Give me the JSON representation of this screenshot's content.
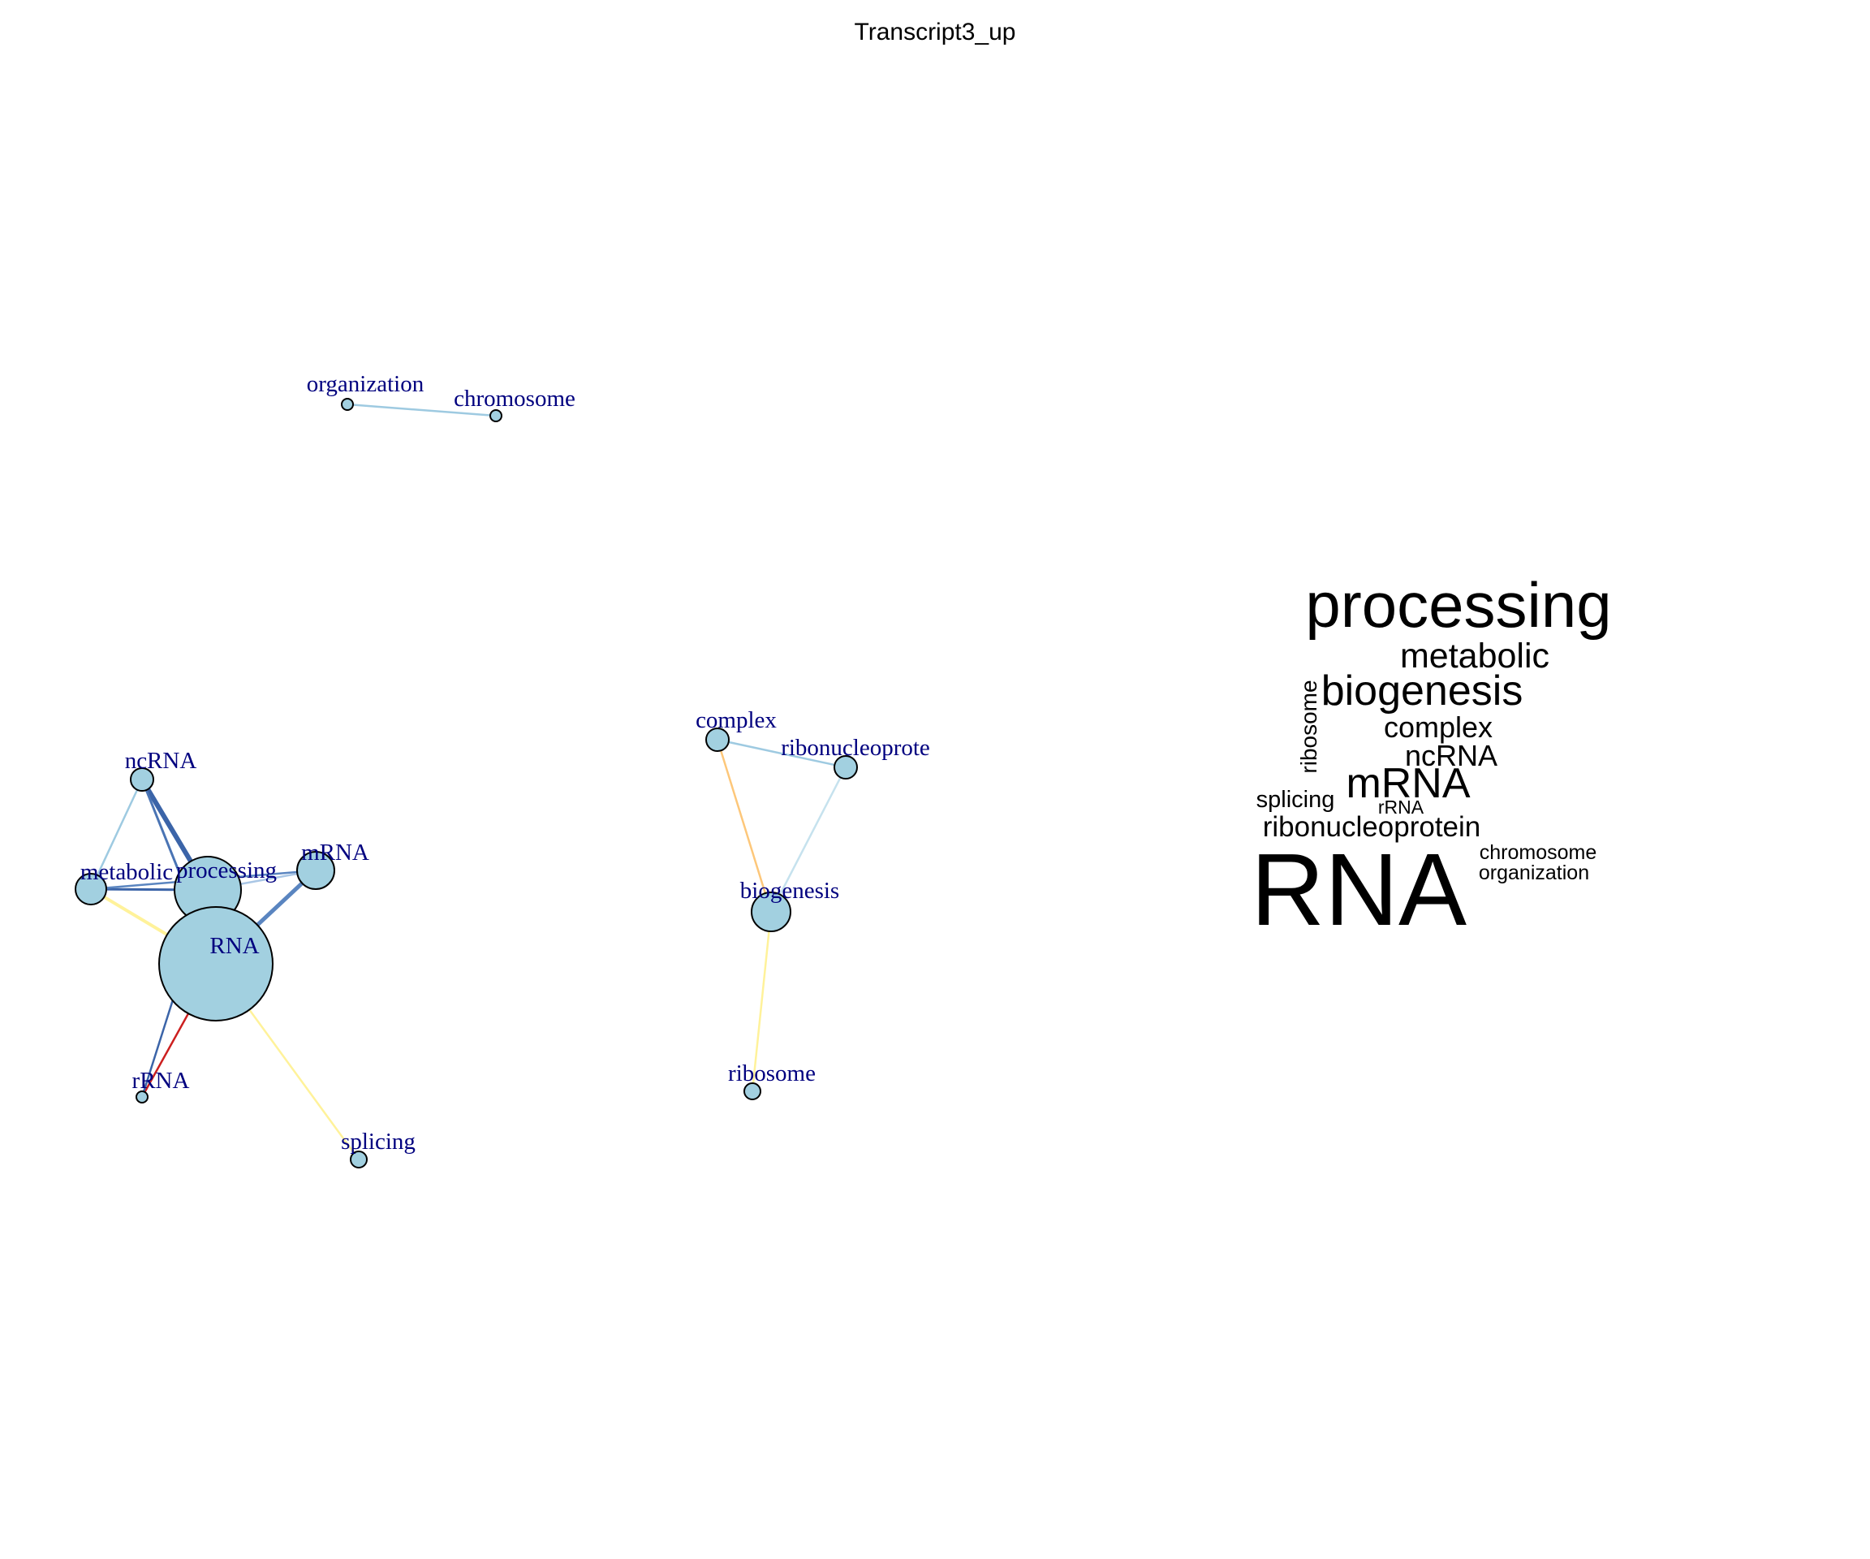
{
  "title": "Transcript3_up",
  "colors": {
    "node_fill": "#a2d0e0",
    "label": "#00007f",
    "word_cloud": "#000000"
  },
  "network": {
    "nodes": [
      {
        "id": "organization",
        "label": "organization"
      },
      {
        "id": "chromosome",
        "label": "chromosome"
      },
      {
        "id": "ncRNA",
        "label": "ncRNA"
      },
      {
        "id": "metabolic",
        "label": "metabolic"
      },
      {
        "id": "processing",
        "label": "processing"
      },
      {
        "id": "mRNA",
        "label": "mRNA"
      },
      {
        "id": "RNA",
        "label": "RNA"
      },
      {
        "id": "rRNA",
        "label": "rRNA"
      },
      {
        "id": "splicing",
        "label": "splicing"
      },
      {
        "id": "complex",
        "label": "complex"
      },
      {
        "id": "ribonucleoprotein",
        "label": "ribonucleoprote"
      },
      {
        "id": "biogenesis",
        "label": "biogenesis"
      },
      {
        "id": "ribosome",
        "label": "ribosome"
      }
    ],
    "edges": [
      {
        "from": "organization",
        "to": "chromosome",
        "color": "#9ecae1"
      },
      {
        "from": "ncRNA",
        "to": "metabolic",
        "color": "#9ecae1"
      },
      {
        "from": "ncRNA",
        "to": "processing",
        "color": "#3b64a8"
      },
      {
        "from": "ncRNA",
        "to": "RNA",
        "color": "#4a74b4"
      },
      {
        "from": "metabolic",
        "to": "processing",
        "color": "#3b64a8"
      },
      {
        "from": "metabolic",
        "to": "mRNA",
        "color": "#5a85c0"
      },
      {
        "from": "metabolic",
        "to": "RNA",
        "color": "#fff29a"
      },
      {
        "from": "processing",
        "to": "mRNA",
        "color": "#a9c6e5"
      },
      {
        "from": "mRNA",
        "to": "RNA",
        "color": "#5a85c0"
      },
      {
        "from": "RNA",
        "to": "rRNA",
        "color": "#cc1f1f"
      },
      {
        "from": "processing",
        "to": "rRNA",
        "color": "#3b64a8"
      },
      {
        "from": "RNA",
        "to": "splicing",
        "color": "#fff29a"
      },
      {
        "from": "complex",
        "to": "ribonucleoprotein",
        "color": "#9ecae1"
      },
      {
        "from": "complex",
        "to": "biogenesis",
        "color": "#fdc77a"
      },
      {
        "from": "ribonucleoprotein",
        "to": "biogenesis",
        "color": "#c6e2ee"
      },
      {
        "from": "biogenesis",
        "to": "ribosome",
        "color": "#fff29a"
      }
    ]
  },
  "word_cloud": {
    "words": [
      {
        "text": "processing",
        "weight": 10
      },
      {
        "text": "metabolic",
        "weight": 5
      },
      {
        "text": "ribosome",
        "weight": 3.5
      },
      {
        "text": "biogenesis",
        "weight": 6
      },
      {
        "text": "complex",
        "weight": 4.5
      },
      {
        "text": "ncRNA",
        "weight": 4.5
      },
      {
        "text": "splicing",
        "weight": 3.5
      },
      {
        "text": "mRNA",
        "weight": 6
      },
      {
        "text": "rRNA",
        "weight": 2.5
      },
      {
        "text": "ribonucleoprotein",
        "weight": 4.5
      },
      {
        "text": "RNA",
        "weight": 20
      },
      {
        "text": "chromosome",
        "weight": 3
      },
      {
        "text": "organization",
        "weight": 3
      }
    ]
  }
}
